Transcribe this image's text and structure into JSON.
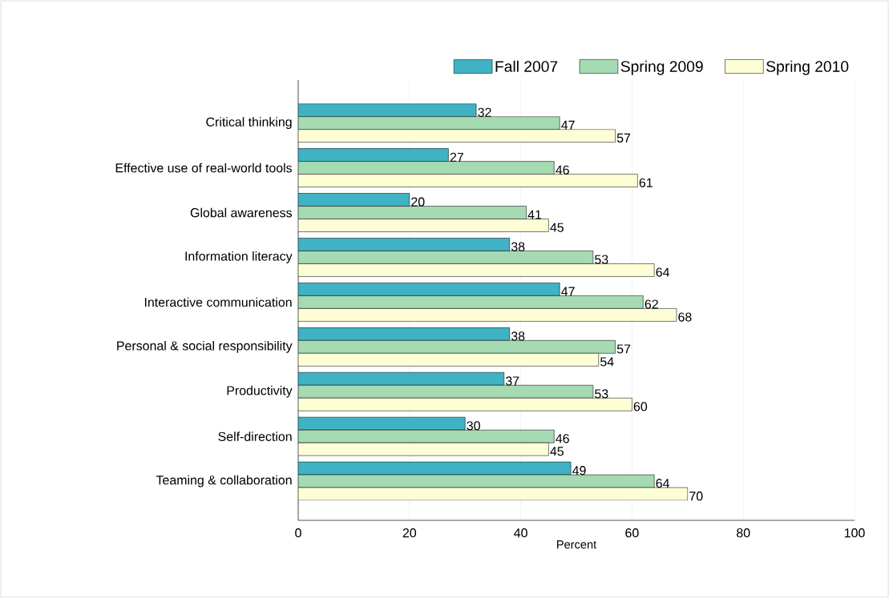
{
  "chart_data": {
    "type": "bar",
    "orientation": "horizontal",
    "xlabel": "Percent",
    "categories": [
      "Critical thinking",
      "Effective use of real-world tools",
      "Global awareness",
      "Information literacy",
      "Interactive communication",
      "Personal & social responsibility",
      "Productivity",
      "Self-direction",
      "Teaming & collaboration"
    ],
    "series": [
      {
        "name": "Fall 2007",
        "color": "#3fb3c3",
        "values": [
          32,
          27,
          20,
          38,
          47,
          38,
          37,
          30,
          49
        ]
      },
      {
        "name": "Spring 2009",
        "color": "#a5dab3",
        "values": [
          47,
          46,
          41,
          53,
          62,
          57,
          53,
          46,
          64
        ]
      },
      {
        "name": "Spring 2010",
        "color": "#fefed6",
        "values": [
          57,
          61,
          45,
          64,
          68,
          54,
          60,
          45,
          70
        ]
      }
    ],
    "xlim": [
      0,
      100
    ],
    "xticks": [
      0,
      20,
      40,
      60,
      80,
      100
    ],
    "data_labels": true,
    "grid": "x",
    "legend": "top"
  }
}
